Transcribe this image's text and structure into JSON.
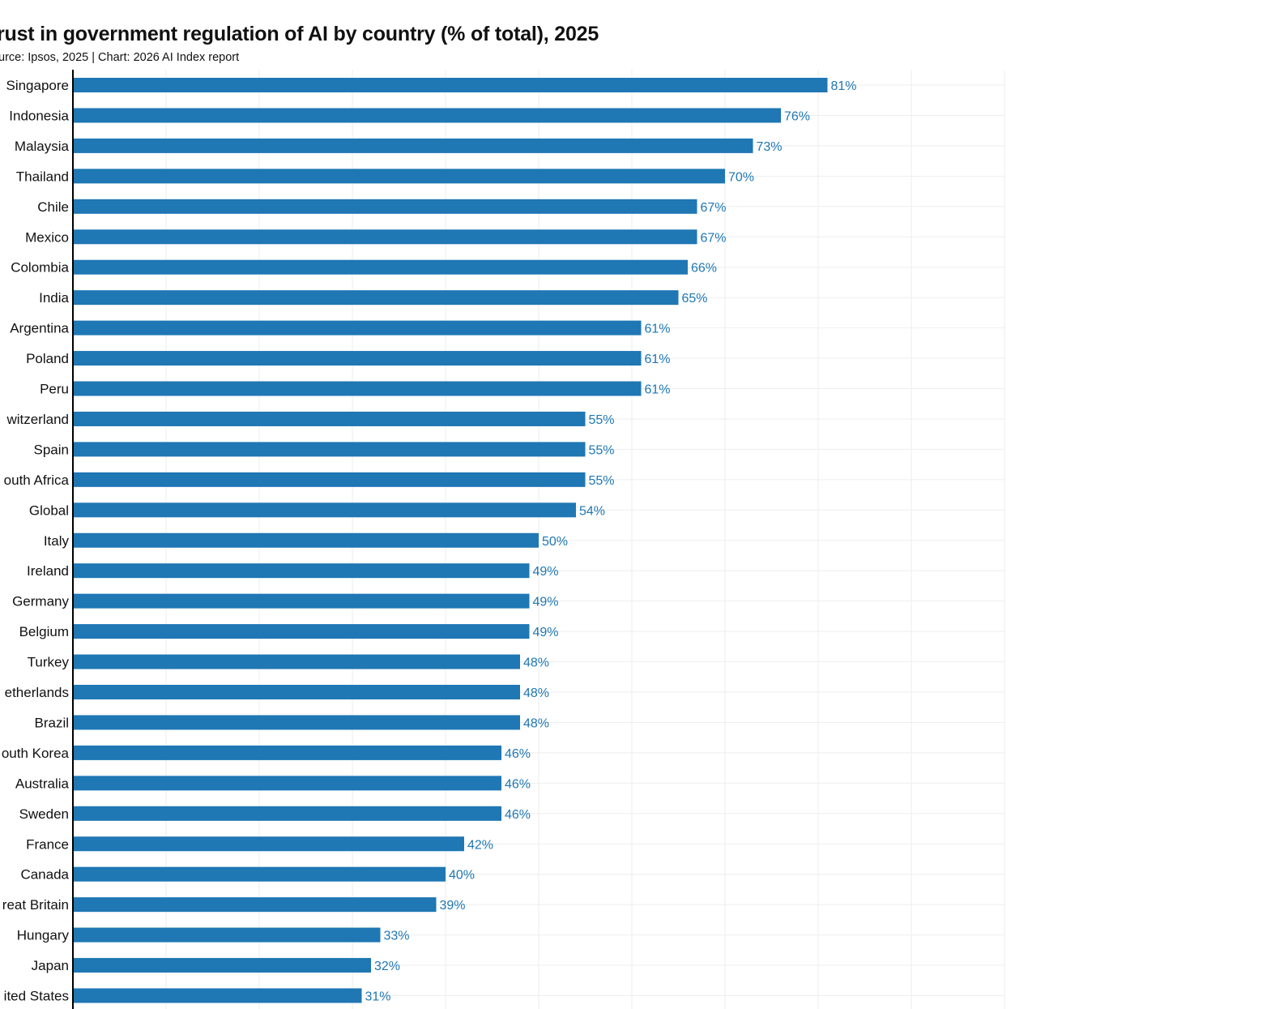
{
  "chart_data": {
    "type": "bar",
    "orientation": "horizontal",
    "title": "rust in government regulation of AI by country (% of total), 2025",
    "subtitle": "urce: Ipsos, 2025 | Chart: 2026 AI Index report",
    "categories": [
      "Singapore",
      "Indonesia",
      "Malaysia",
      "Thailand",
      "Chile",
      "Mexico",
      "Colombia",
      "India",
      "Argentina",
      "Poland",
      "Peru",
      "witzerland",
      "Spain",
      "outh Africa",
      "Global",
      "Italy",
      "Ireland",
      "Germany",
      "Belgium",
      "Turkey",
      "etherlands",
      "Brazil",
      "outh Korea",
      "Australia",
      "Sweden",
      "France",
      "Canada",
      "reat Britain",
      "Hungary",
      "Japan",
      "ited States"
    ],
    "values": [
      81,
      76,
      73,
      70,
      67,
      67,
      66,
      65,
      61,
      61,
      61,
      55,
      55,
      55,
      54,
      50,
      49,
      49,
      49,
      48,
      48,
      48,
      46,
      46,
      46,
      42,
      40,
      39,
      33,
      32,
      31
    ],
    "value_labels": [
      "81%",
      "76%",
      "73%",
      "70%",
      "67%",
      "67%",
      "66%",
      "65%",
      "61%",
      "61%",
      "61%",
      "55%",
      "55%",
      "55%",
      "54%",
      "50%",
      "49%",
      "49%",
      "49%",
      "48%",
      "48%",
      "48%",
      "46%",
      "46%",
      "46%",
      "42%",
      "40%",
      "39%",
      "33%",
      "32%",
      "31%"
    ],
    "xlim": [
      0,
      100
    ],
    "grid": true,
    "bar_color": "#1f77b4",
    "label_color": "#1f77b4"
  }
}
